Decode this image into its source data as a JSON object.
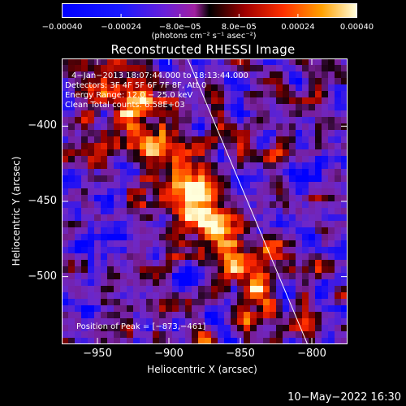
{
  "chart_data": {
    "type": "heatmap",
    "title": "Reconstructed RHESSI Image",
    "xlabel": "Heliocentric X (arcsec)",
    "ylabel": "Heliocentric Y (arcsec)",
    "xlim": [
      -975,
      -775
    ],
    "ylim": [
      -545,
      -355
    ],
    "x_ticks": [
      -950,
      -900,
      -850,
      -800
    ],
    "x_tick_labels": [
      "−950",
      "−900",
      "−850",
      "−800"
    ],
    "y_ticks": [
      -400,
      -450,
      -500
    ],
    "y_tick_labels": [
      "−400",
      "−450",
      "−500"
    ],
    "colorbar": {
      "range": [
        -0.0004,
        0.0004
      ],
      "tick_labels": [
        "−0.00040",
        "−0.00024",
        "−8.0e−05",
        "8.0e−05",
        "0.00024",
        "0.00040"
      ],
      "units": "(photons cm⁻² s⁻¹ asec⁻²)"
    },
    "annotations": [
      "4−Jan−2013 18:07:44.000 to 18:13:44.000",
      "Detectors: 3F 4F 5F 6F 7F 8F, Att 0",
      "Energy Range: 12.0 − 25.0 keV",
      "Clean     Total counts: 6.58E+03"
    ],
    "peak": {
      "x": -873,
      "y": -461,
      "label": "Position of Peak = [−873,−461]"
    },
    "limb_line": [
      [
        -887,
        -355
      ],
      [
        -803,
        -545
      ]
    ]
  },
  "footer": {
    "timestamp": "10−May−2022 16:30"
  }
}
